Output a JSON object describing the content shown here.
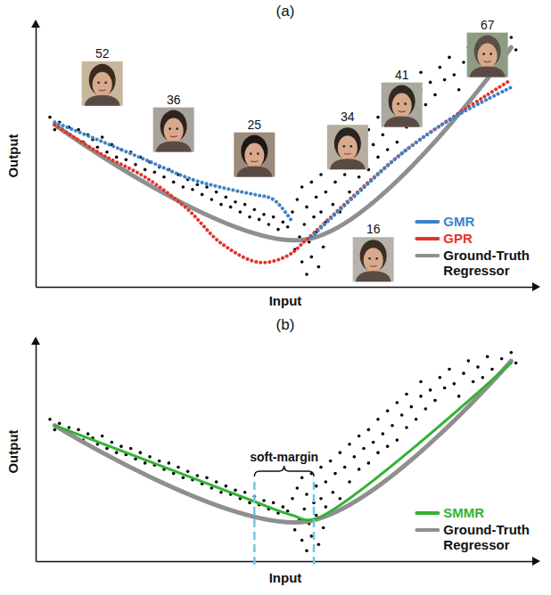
{
  "chart_data": [
    {
      "type": "scatter",
      "title": "(a)",
      "x_label": "Input",
      "y_label": "Output",
      "xlim": [
        -3,
        102
      ],
      "ylim": [
        0,
        105
      ],
      "tick_labels": false,
      "legend": "lower right",
      "series": [
        {
          "type": "scatter",
          "color": "#000000",
          "marker": "dot",
          "x": [
            0,
            1,
            2,
            3,
            4,
            5,
            6,
            7,
            8,
            9,
            10,
            11,
            12,
            13,
            14,
            15,
            16,
            17,
            18,
            19,
            20,
            21,
            22,
            23,
            24,
            25,
            26,
            27,
            28,
            29,
            30,
            31,
            32,
            33,
            34,
            35,
            36,
            37,
            38,
            39,
            40,
            41,
            42,
            43,
            44,
            45,
            46,
            47,
            48,
            49,
            50,
            51,
            51.5,
            52,
            52.5,
            53,
            53,
            53.5,
            54,
            54,
            54.5,
            55,
            55,
            55.5,
            56,
            56,
            56.5,
            57,
            57,
            57.5,
            58,
            58,
            59,
            59.5,
            60,
            61,
            61,
            62,
            63,
            63,
            64,
            65,
            65,
            66,
            67,
            67,
            68,
            69,
            69,
            70,
            71,
            71,
            72,
            73,
            73,
            74,
            75,
            75,
            76,
            77,
            78,
            78,
            79,
            80,
            81,
            82,
            83,
            84,
            85,
            86,
            87,
            88,
            89,
            90,
            91,
            92,
            93,
            94,
            95,
            96,
            97,
            98
          ],
          "values": [
            68,
            63,
            66,
            62,
            64,
            60,
            63,
            58,
            61,
            59,
            56,
            60,
            54,
            57,
            52,
            55,
            51,
            54,
            49,
            52,
            47,
            50,
            46,
            48,
            44,
            47,
            42,
            45,
            40,
            43,
            39,
            41,
            37,
            40,
            35,
            38,
            33,
            36,
            32,
            34,
            30,
            33,
            28,
            31,
            27,
            29,
            25,
            28,
            23,
            26,
            24,
            30,
            15,
            35,
            20,
            10,
            40,
            25,
            5,
            32,
            18,
            42,
            12,
            28,
            36,
            22,
            8,
            45,
            30,
            16,
            38,
            26,
            48,
            33,
            42,
            52,
            30,
            45,
            38,
            56,
            50,
            44,
            60,
            54,
            47,
            63,
            57,
            52,
            68,
            61,
            55,
            72,
            65,
            58,
            76,
            70,
            64,
            80,
            74,
            68,
            79,
            86,
            73,
            82,
            77,
            88,
            83,
            92,
            85,
            79,
            90,
            96,
            86,
            93,
            88,
            98,
            92,
            88,
            97,
            93,
            100,
            95
          ]
        },
        {
          "name": "GMR",
          "type": "line",
          "color": "#3b83c8",
          "line_style": "dotted",
          "x": [
            1,
            10,
            20,
            30,
            38,
            43,
            47,
            51,
            53,
            55,
            65,
            75,
            85,
            97
          ],
          "values": [
            66,
            59,
            51,
            43,
            39,
            37,
            35,
            26,
            null,
            20,
            38,
            55,
            68,
            80
          ]
        },
        {
          "name": "GPR",
          "type": "line",
          "color": "#e0352b",
          "line_style": "dotted",
          "x": [
            1,
            11,
            20,
            29,
            36,
            44,
            50,
            54,
            75,
            97
          ],
          "values": [
            65,
            53,
            44,
            31,
            17.5,
            9.8,
            12.5,
            19,
            55,
            83
          ]
        },
        {
          "name": "Ground-Truth Regressor",
          "type": "line",
          "color": "#8f8f8f",
          "line_style": "solid",
          "x": [
            1,
            54,
            97
          ],
          "values": [
            65,
            19,
            96
          ]
        }
      ],
      "annotations": [
        {
          "text": "52",
          "x": 11,
          "y": 81.5
        },
        {
          "text": "36",
          "x": 26,
          "y": 63
        },
        {
          "text": "25",
          "x": 43,
          "y": 53
        },
        {
          "text": "34",
          "x": 62.6,
          "y": 56
        },
        {
          "text": "41",
          "x": 74,
          "y": 73
        },
        {
          "text": "67",
          "x": 92,
          "y": 93
        },
        {
          "text": "16",
          "x": 68,
          "y": 11
        }
      ]
    },
    {
      "type": "scatter",
      "title": "(b)",
      "x_label": "Input",
      "y_label": "Output",
      "xlim": [
        -3,
        102
      ],
      "ylim": [
        0,
        105
      ],
      "tick_labels": false,
      "legend": "lower right",
      "series": [
        {
          "type": "scatter",
          "color": "#000000",
          "marker": "dot",
          "x": [
            0,
            1,
            2,
            3,
            4,
            5,
            6,
            7,
            8,
            9,
            10,
            11,
            12,
            13,
            14,
            15,
            16,
            17,
            18,
            19,
            20,
            21,
            22,
            23,
            24,
            25,
            26,
            27,
            28,
            29,
            30,
            31,
            32,
            33,
            34,
            35,
            36,
            37,
            38,
            39,
            40,
            41,
            42,
            43,
            44,
            45,
            46,
            47,
            48,
            49,
            50,
            51,
            51.5,
            52,
            52.5,
            53,
            53,
            53.5,
            54,
            54,
            54.5,
            55,
            55,
            55.5,
            56,
            56,
            56.5,
            57,
            57,
            57.5,
            58,
            58,
            59,
            59.5,
            60,
            61,
            61,
            62,
            63,
            63,
            64,
            65,
            65,
            66,
            67,
            67,
            68,
            69,
            69,
            70,
            71,
            71,
            72,
            73,
            73,
            74,
            75,
            75,
            76,
            77,
            78,
            78,
            79,
            80,
            81,
            82,
            83,
            84,
            85,
            86,
            87,
            88,
            89,
            90,
            91,
            92,
            93,
            94,
            95,
            96,
            97,
            98
          ],
          "values": [
            68,
            63,
            66,
            62,
            64,
            60,
            63,
            58,
            61,
            59,
            56,
            60,
            54,
            57,
            52,
            55,
            51,
            54,
            49,
            52,
            47,
            50,
            46,
            48,
            44,
            47,
            42,
            45,
            40,
            43,
            39,
            41,
            37,
            40,
            35,
            38,
            33,
            36,
            32,
            34,
            30,
            33,
            28,
            31,
            27,
            29,
            25,
            28,
            23,
            26,
            24,
            30,
            15,
            35,
            20,
            10,
            40,
            25,
            5,
            32,
            18,
            42,
            12,
            28,
            36,
            22,
            8,
            45,
            30,
            16,
            38,
            26,
            48,
            33,
            42,
            52,
            30,
            45,
            38,
            56,
            50,
            44,
            60,
            54,
            47,
            63,
            57,
            52,
            68,
            61,
            55,
            72,
            65,
            58,
            76,
            70,
            64,
            80,
            74,
            68,
            79,
            86,
            73,
            82,
            77,
            88,
            83,
            92,
            85,
            79,
            90,
            96,
            86,
            93,
            88,
            98,
            92,
            88,
            97,
            93,
            100,
            95
          ]
        },
        {
          "name": "SMMR",
          "type": "line",
          "color": "#33b233",
          "line_style": "solid",
          "x": [
            1,
            43,
            47,
            51,
            55.5,
            97
          ],
          "values": [
            65,
            28.6,
            25,
            22,
            20,
            95
          ]
        },
        {
          "name": "Ground-Truth Regressor",
          "type": "line",
          "color": "#8f8f8f",
          "line_style": "solid",
          "x": [
            1,
            54,
            97
          ],
          "values": [
            65,
            19,
            96
          ]
        }
      ],
      "annotations": [
        {
          "text": "soft-margin",
          "x": [
            43,
            55.5
          ]
        }
      ]
    }
  ]
}
